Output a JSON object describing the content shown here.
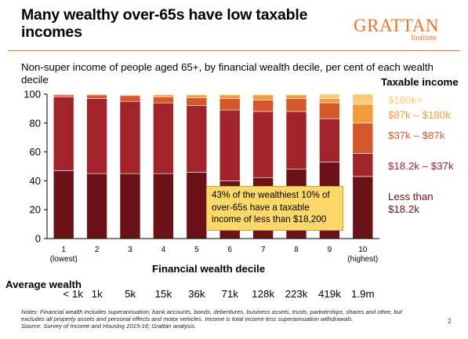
{
  "title": "Many wealthy over-65s have low taxable incomes",
  "logo": {
    "main": "GRATTAN",
    "sub": "Institute"
  },
  "subtitle": "Non-super income of people aged 65+, by financial wealth decile, per cent of each wealth decile",
  "legend_title": "Taxable income",
  "callout": "43% of the wealthiest 10% of over-65s have a taxable income of less than $18,200",
  "average_wealth_label": "Average wealth",
  "average_wealth": [
    "< 1k",
    "1k",
    "5k",
    "15k",
    "36k",
    "71k",
    "128k",
    "223k",
    "419k",
    "1.9m"
  ],
  "notes": "Notes: Financial wealth includes superannuation, bank accounts, bonds, debentures, business assets, trusts, partnerships, shares and other, but excludes all property assets and personal effects and motor vehicles. Income is total income less superannuation withdrawals.",
  "source": "Source: Survey of Income and Housing 2015-16; Grattan analysis.",
  "page_number": "2",
  "chart_data": {
    "type": "bar",
    "stacked": true,
    "categories": [
      "1",
      "2",
      "3",
      "4",
      "5",
      "6",
      "7",
      "8",
      "9",
      "10"
    ],
    "category_sublabels": [
      "(lowest)",
      "",
      "",
      "",
      "",
      "",
      "",
      "",
      "",
      "(highest)"
    ],
    "xlabel": "Financial wealth decile",
    "ylabel": "",
    "ylim": [
      0,
      100
    ],
    "yticks": [
      0,
      20,
      40,
      60,
      80,
      100
    ],
    "grid": false,
    "legend_position": "right",
    "series": [
      {
        "name": "Less than $18.2k",
        "color": "#6b1117",
        "values": [
          47,
          45,
          45,
          45,
          46,
          40,
          42,
          48,
          53,
          43
        ]
      },
      {
        "name": "$18.2k – $37k",
        "color": "#a3232b",
        "values": [
          51,
          52,
          50,
          49,
          46,
          49,
          46,
          40,
          30,
          16
        ]
      },
      {
        "name": "$37k – $87k",
        "color": "#d4582a",
        "values": [
          1.5,
          2.5,
          4,
          4,
          5.5,
          8,
          8,
          9,
          11,
          21
        ]
      },
      {
        "name": "$87k – $180k",
        "color": "#f39a3b",
        "values": [
          0.5,
          0.5,
          0.5,
          1.5,
          2,
          2.5,
          3.5,
          2.5,
          3,
          13
        ]
      },
      {
        "name": "$180k+",
        "color": "#fbcb78",
        "values": [
          0,
          0,
          0.5,
          0.5,
          0.5,
          0.5,
          0.5,
          0.5,
          3,
          7
        ]
      }
    ]
  }
}
